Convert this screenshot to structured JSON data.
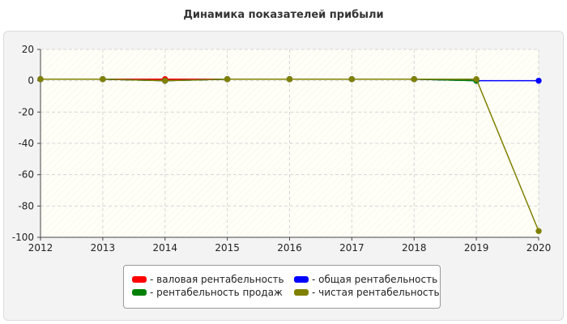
{
  "chart_data": {
    "type": "line",
    "title": "Динамика показателей прибыли",
    "xlabel": "",
    "ylabel": "",
    "x": [
      "2012",
      "2013",
      "2014",
      "2015",
      "2016",
      "2017",
      "2018",
      "2019",
      "2020"
    ],
    "ylim": [
      -100,
      20
    ],
    "yticks": [
      20,
      0,
      -20,
      -40,
      -60,
      -80,
      -100
    ],
    "grid": true,
    "legend_position": "bottom",
    "series": [
      {
        "name": "- валовая рентабельность",
        "color": "#ff0000",
        "values": [
          1,
          1,
          1,
          1,
          1,
          1,
          1,
          null,
          null
        ]
      },
      {
        "name": "- общая рентабельность",
        "color": "#0000ff",
        "values": [
          1,
          1,
          0,
          1,
          1,
          1,
          1,
          0,
          0
        ]
      },
      {
        "name": "- рентабельность продаж",
        "color": "#008000",
        "values": [
          1,
          1,
          0,
          1,
          1,
          1,
          1,
          0,
          null
        ]
      },
      {
        "name": "- чистая рентабельность",
        "color": "#808000",
        "values": [
          1,
          1,
          0,
          1,
          1,
          1,
          1,
          1,
          -96
        ]
      }
    ]
  }
}
